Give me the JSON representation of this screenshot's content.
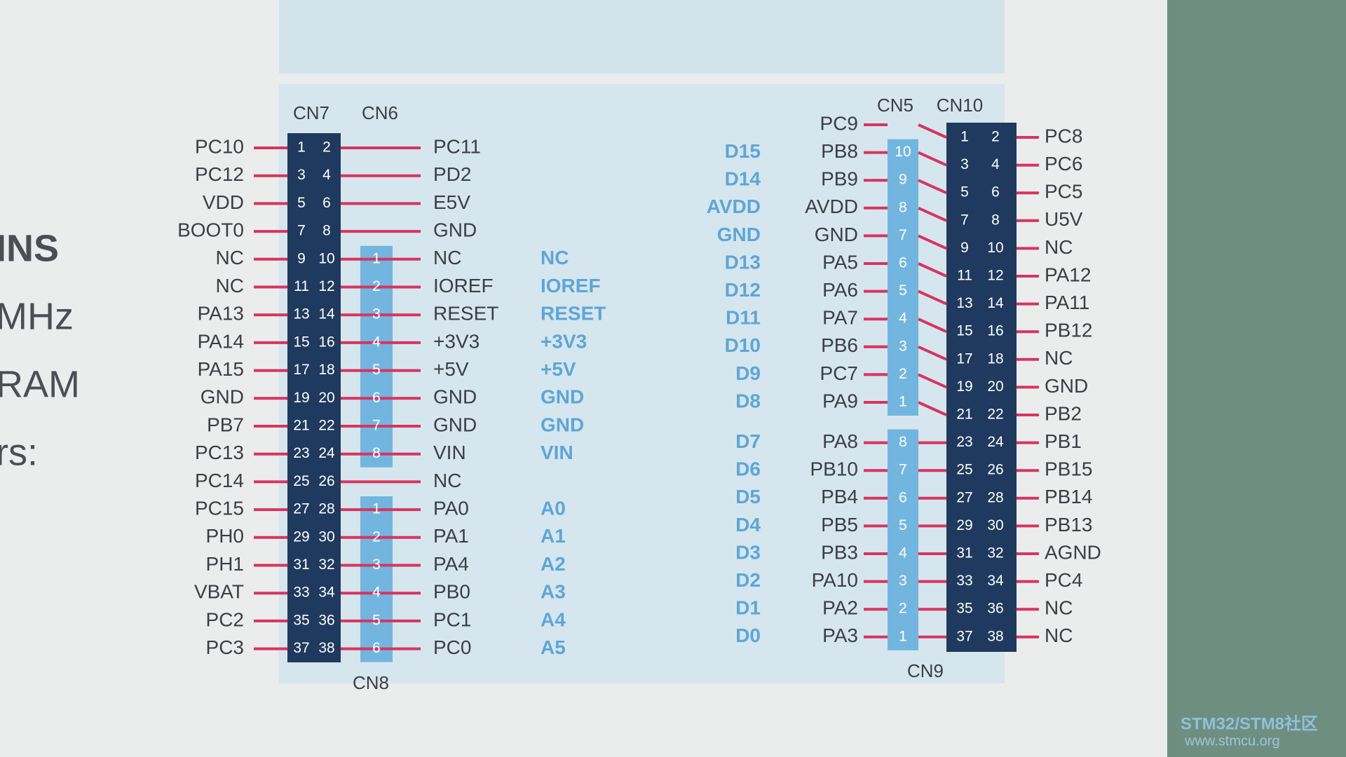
{
  "side_text": [
    "INS",
    "MHz",
    "RAM",
    "rs:"
  ],
  "left": {
    "cn7": "CN7",
    "cn6": "CN6",
    "cn8": "CN8",
    "rows": [
      {
        "left": "PC10",
        "pins": [
          "1",
          "2"
        ],
        "right": "PC11"
      },
      {
        "left": "PC12",
        "pins": [
          "3",
          "4"
        ],
        "right": "PD2"
      },
      {
        "left": "VDD",
        "pins": [
          "5",
          "6"
        ],
        "right": "E5V"
      },
      {
        "left": "BOOT0",
        "pins": [
          "7",
          "8"
        ],
        "right": "GND"
      },
      {
        "left": "NC",
        "pins": [
          "9",
          "10"
        ],
        "right": "NC",
        "header_pin": "1",
        "arduino": "NC"
      },
      {
        "left": "NC",
        "pins": [
          "11",
          "12"
        ],
        "right": "IOREF",
        "header_pin": "2",
        "arduino": "IOREF"
      },
      {
        "left": "PA13",
        "pins": [
          "13",
          "14"
        ],
        "right": "RESET",
        "header_pin": "3",
        "arduino": "RESET"
      },
      {
        "left": "PA14",
        "pins": [
          "15",
          "16"
        ],
        "right": "+3V3",
        "header_pin": "4",
        "arduino": "+3V3"
      },
      {
        "left": "PA15",
        "pins": [
          "17",
          "18"
        ],
        "right": "+5V",
        "header_pin": "5",
        "arduino": "+5V"
      },
      {
        "left": "GND",
        "pins": [
          "19",
          "20"
        ],
        "right": "GND",
        "header_pin": "6",
        "arduino": "GND"
      },
      {
        "left": "PB7",
        "pins": [
          "21",
          "22"
        ],
        "right": "GND",
        "header_pin": "7",
        "arduino": "GND"
      },
      {
        "left": "PC13",
        "pins": [
          "23",
          "24"
        ],
        "right": "VIN",
        "header_pin": "8",
        "arduino": "VIN"
      },
      {
        "left": "PC14",
        "pins": [
          "25",
          "26"
        ],
        "right": "NC"
      },
      {
        "left": "PC15",
        "pins": [
          "27",
          "28"
        ],
        "right": "PA0",
        "header_pin": "1",
        "arduino": "A0"
      },
      {
        "left": "PH0",
        "pins": [
          "29",
          "30"
        ],
        "right": "PA1",
        "header_pin": "2",
        "arduino": "A1"
      },
      {
        "left": "PH1",
        "pins": [
          "31",
          "32"
        ],
        "right": "PA4",
        "header_pin": "3",
        "arduino": "A2"
      },
      {
        "left": "VBAT",
        "pins": [
          "33",
          "34"
        ],
        "right": "PB0",
        "header_pin": "4",
        "arduino": "A3"
      },
      {
        "left": "PC2",
        "pins": [
          "35",
          "36"
        ],
        "right": "PC1",
        "header_pin": "5",
        "arduino": "A4"
      },
      {
        "left": "PC3",
        "pins": [
          "37",
          "38"
        ],
        "right": "PC0",
        "header_pin": "6",
        "arduino": "A5"
      }
    ]
  },
  "right": {
    "cn5": "CN5",
    "cn10": "CN10",
    "cn9": "CN9",
    "rows": [
      {
        "left": "PC9",
        "pins": [
          "1",
          "2"
        ],
        "right": "PC8"
      },
      {
        "left": "PB8",
        "pins": [
          "3",
          "4"
        ],
        "right": "PC6",
        "header_pin": "10",
        "arduino": "D15"
      },
      {
        "left": "PB9",
        "pins": [
          "5",
          "6"
        ],
        "right": "PC5",
        "header_pin": "9",
        "arduino": "D14"
      },
      {
        "left": "AVDD",
        "pins": [
          "7",
          "8"
        ],
        "right": "U5V",
        "header_pin": "8",
        "arduino": "AVDD"
      },
      {
        "left": "GND",
        "pins": [
          "9",
          "10"
        ],
        "right": "NC",
        "header_pin": "7",
        "arduino": "GND"
      },
      {
        "left": "PA5",
        "pins": [
          "11",
          "12"
        ],
        "right": "PA12",
        "header_pin": "6",
        "arduino": "D13"
      },
      {
        "left": "PA6",
        "pins": [
          "13",
          "14"
        ],
        "right": "PA11",
        "header_pin": "5",
        "arduino": "D12"
      },
      {
        "left": "PA7",
        "pins": [
          "15",
          "16"
        ],
        "right": "PB12",
        "header_pin": "4",
        "arduino": "D11"
      },
      {
        "left": "PB6",
        "pins": [
          "17",
          "18"
        ],
        "right": "NC",
        "header_pin": "3",
        "arduino": "D10"
      },
      {
        "left": "PC7",
        "pins": [
          "19",
          "20"
        ],
        "right": "GND",
        "header_pin": "2",
        "arduino": "D9"
      },
      {
        "left": "PA9",
        "pins": [
          "21",
          "22"
        ],
        "right": "PB2",
        "header_pin": "1",
        "arduino": "D8"
      },
      {
        "left": "PA8",
        "pins": [
          "23",
          "24"
        ],
        "right": "PB1",
        "header_pin": "8",
        "arduino": "D7"
      },
      {
        "left": "PB10",
        "pins": [
          "25",
          "26"
        ],
        "right": "PB15",
        "header_pin": "7",
        "arduino": "D6"
      },
      {
        "left": "PB4",
        "pins": [
          "27",
          "28"
        ],
        "right": "PB14",
        "header_pin": "6",
        "arduino": "D5"
      },
      {
        "left": "PB5",
        "pins": [
          "29",
          "30"
        ],
        "right": "PB13",
        "header_pin": "5",
        "arduino": "D4"
      },
      {
        "left": "PB3",
        "pins": [
          "31",
          "32"
        ],
        "right": "AGND",
        "header_pin": "4",
        "arduino": "D3"
      },
      {
        "left": "PA10",
        "pins": [
          "33",
          "34"
        ],
        "right": "PC4",
        "header_pin": "3",
        "arduino": "D2"
      },
      {
        "left": "PA2",
        "pins": [
          "35",
          "36"
        ],
        "right": "NC",
        "header_pin": "2",
        "arduino": "D1"
      },
      {
        "left": "PA3",
        "pins": [
          "37",
          "38"
        ],
        "right": "NC",
        "header_pin": "1",
        "arduino": "D0"
      }
    ]
  },
  "watermark": {
    "title": "STM32/STM8社区",
    "url": "www.stmcu.org"
  }
}
